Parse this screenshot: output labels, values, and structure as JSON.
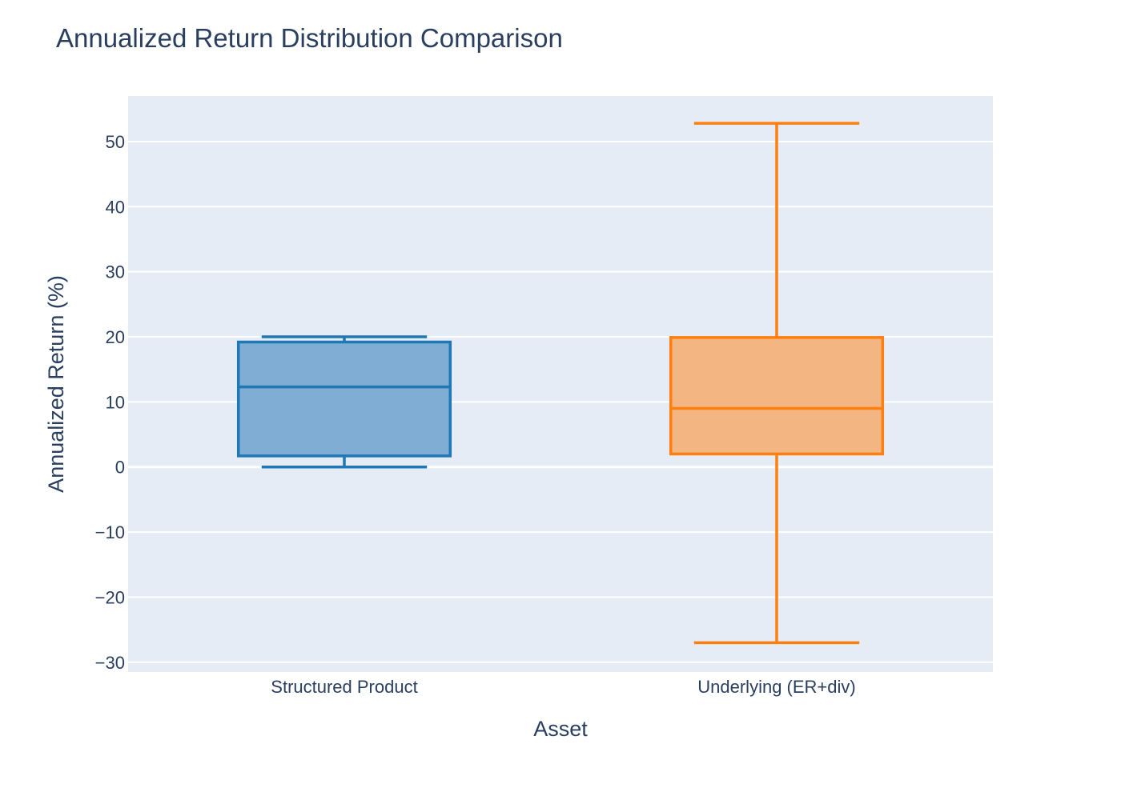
{
  "chart_data": {
    "type": "box",
    "title": "Annualized Return Distribution Comparison",
    "xlabel": "Asset",
    "ylabel": "Annualized Return (%)",
    "ylim": [
      -31.5,
      57
    ],
    "yticks": [
      50,
      40,
      30,
      20,
      10,
      0,
      -10,
      -20,
      -30
    ],
    "ytick_labels": [
      "50",
      "40",
      "30",
      "20",
      "10",
      "0",
      "−10",
      "−20",
      "−30"
    ],
    "categories": [
      "Structured Product",
      "Underlying (ER+div)"
    ],
    "series": [
      {
        "category": "Structured Product",
        "color": "#1f77b4",
        "fill": "#7fadd4",
        "whisker_low": 0,
        "q1": 1.7,
        "median": 12.3,
        "q3": 19.2,
        "whisker_high": 20
      },
      {
        "category": "Underlying (ER+div)",
        "color": "#ff7f0e",
        "fill": "#f3b582",
        "whisker_low": -27,
        "q1": 2.0,
        "median": 9.0,
        "q3": 19.9,
        "whisker_high": 52.8
      }
    ],
    "grid": true,
    "legend": "none",
    "plot_bgcolor": "#e5ecf6",
    "grid_color": "#ffffff"
  }
}
